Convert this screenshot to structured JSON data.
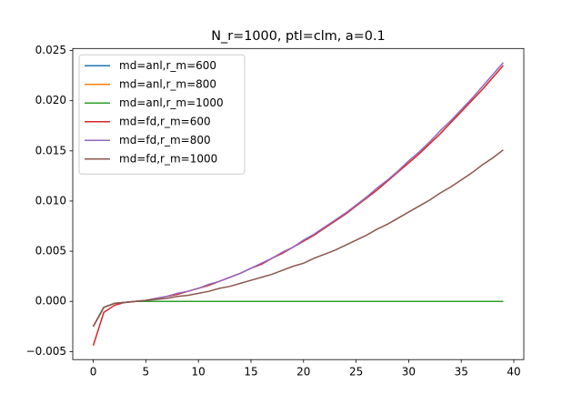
{
  "chart_data": {
    "type": "line",
    "title": "N_r=1000, ptl=clm, a=0.1",
    "x": [
      0,
      1,
      2,
      3,
      4,
      5,
      6,
      7,
      8,
      9,
      10,
      11,
      12,
      13,
      14,
      15,
      16,
      17,
      18,
      19,
      20,
      21,
      22,
      23,
      24,
      25,
      26,
      27,
      28,
      29,
      30,
      31,
      32,
      33,
      34,
      35,
      36,
      37,
      38,
      39
    ],
    "series": [
      {
        "name": "md=anl,r_m=600",
        "color": "#1f77b4",
        "values": [
          -0.0025,
          -0.0006,
          -0.0002,
          -0.0001,
          0,
          0,
          0,
          0,
          0,
          0,
          0,
          0,
          0,
          0,
          0,
          0,
          0,
          0,
          0,
          0,
          0,
          0,
          0,
          0,
          0,
          0,
          0,
          0,
          0,
          0,
          0,
          0,
          0,
          0,
          0,
          0,
          0,
          0,
          0,
          0
        ]
      },
      {
        "name": "md=anl,r_m=800",
        "color": "#ff7f0e",
        "values": [
          -0.0025,
          -0.0006,
          -0.0002,
          -0.0001,
          0,
          0,
          0,
          0,
          0,
          0,
          0,
          0,
          0,
          0,
          0,
          0,
          0,
          0,
          0,
          0,
          0,
          0,
          0,
          0,
          0,
          0,
          0,
          0,
          0,
          0,
          0,
          0,
          0,
          0,
          0,
          0,
          0,
          0,
          0,
          0
        ]
      },
      {
        "name": "md=anl,r_m=1000",
        "color": "#2ca02c",
        "values": [
          -0.0025,
          -0.0006,
          -0.0002,
          -0.0001,
          0,
          0,
          0,
          0,
          0,
          0,
          0,
          0,
          0,
          0,
          0,
          0,
          0,
          0,
          0,
          0,
          0,
          0,
          0,
          0,
          0,
          0,
          0,
          0,
          0,
          0,
          0,
          0,
          0,
          0,
          0,
          0,
          0,
          0,
          0,
          0
        ]
      },
      {
        "name": "md=fd,r_m=600",
        "color": "#d62728",
        "values": [
          -0.0044,
          -0.0011,
          -0.0004,
          -0.0001,
          0,
          0.0001,
          0.0003,
          0.0005,
          0.0007,
          0.001,
          0.0013,
          0.0016,
          0.002,
          0.0024,
          0.0028,
          0.0033,
          0.0037,
          0.0043,
          0.0048,
          0.0054,
          0.006,
          0.0066,
          0.0073,
          0.008,
          0.0087,
          0.0095,
          0.0103,
          0.0111,
          0.012,
          0.0129,
          0.0138,
          0.0147,
          0.0157,
          0.0167,
          0.0178,
          0.0189,
          0.02,
          0.0211,
          0.0223,
          0.0235
        ]
      },
      {
        "name": "md=fd,r_m=800",
        "color": "#9467bd",
        "values": [
          -0.0025,
          -0.0006,
          -0.0002,
          -0.0001,
          0,
          0.0001,
          0.0003,
          0.0005,
          0.0008,
          0.001,
          0.0013,
          0.0017,
          0.002,
          0.0024,
          0.0028,
          0.0033,
          0.0038,
          0.0043,
          0.0049,
          0.0054,
          0.0061,
          0.0067,
          0.0074,
          0.0081,
          0.0088,
          0.0096,
          0.0104,
          0.0113,
          0.0121,
          0.013,
          0.014,
          0.0149,
          0.0159,
          0.017,
          0.018,
          0.0191,
          0.0202,
          0.0214,
          0.0226,
          0.0238
        ]
      },
      {
        "name": "md=fd,r_m=1000",
        "color": "#8c564b",
        "values": [
          -0.0025,
          -0.0006,
          -0.0002,
          -0.0001,
          0,
          0.0001,
          0.0002,
          0.0003,
          0.0005,
          0.0006,
          0.0008,
          0.001,
          0.0013,
          0.0015,
          0.0018,
          0.0021,
          0.0024,
          0.0027,
          0.0031,
          0.0035,
          0.0038,
          0.0043,
          0.0047,
          0.0051,
          0.0056,
          0.0061,
          0.0066,
          0.0072,
          0.0077,
          0.0083,
          0.0089,
          0.0095,
          0.0101,
          0.0108,
          0.0114,
          0.0121,
          0.0128,
          0.0136,
          0.0143,
          0.0151
        ]
      }
    ],
    "xlim": [
      -1.95,
      40.95
    ],
    "xticks": [
      0,
      5,
      10,
      15,
      20,
      25,
      30,
      35,
      40
    ],
    "ylim": [
      -0.0058,
      0.0252
    ],
    "yticks": [
      {
        "value": -0.005,
        "label": "−0.005"
      },
      {
        "value": 0,
        "label": "0.000"
      },
      {
        "value": 0.005,
        "label": "0.005"
      },
      {
        "value": 0.01,
        "label": "0.010"
      },
      {
        "value": 0.015,
        "label": "0.015"
      },
      {
        "value": 0.02,
        "label": "0.020"
      },
      {
        "value": 0.025,
        "label": "0.025"
      }
    ],
    "legend": "upper left",
    "grid": false
  }
}
